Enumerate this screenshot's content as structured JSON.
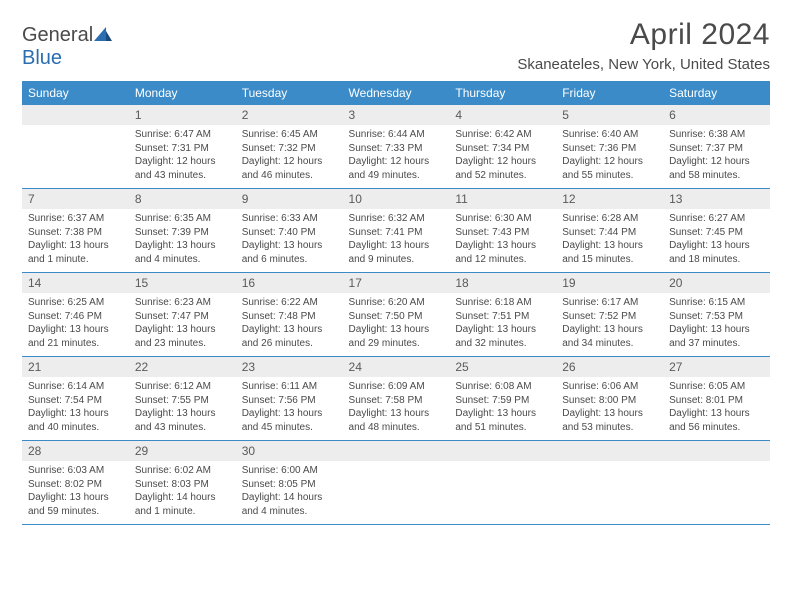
{
  "brand": {
    "part1": "General",
    "part2": "Blue"
  },
  "title": "April 2024",
  "location": "Skaneateles, New York, United States",
  "colors": {
    "header_bg": "#3b8bc8",
    "header_text": "#ffffff",
    "daynum_bg": "#ededed",
    "cell_border": "#3b8bc8",
    "text": "#4a4a4a",
    "brand_blue": "#2a6db0"
  },
  "weekdays": [
    "Sunday",
    "Monday",
    "Tuesday",
    "Wednesday",
    "Thursday",
    "Friday",
    "Saturday"
  ],
  "weeks": [
    {
      "nums": [
        "",
        "1",
        "2",
        "3",
        "4",
        "5",
        "6"
      ],
      "cells": [
        null,
        {
          "sunrise": "Sunrise: 6:47 AM",
          "sunset": "Sunset: 7:31 PM",
          "daylight1": "Daylight: 12 hours",
          "daylight2": "and 43 minutes."
        },
        {
          "sunrise": "Sunrise: 6:45 AM",
          "sunset": "Sunset: 7:32 PM",
          "daylight1": "Daylight: 12 hours",
          "daylight2": "and 46 minutes."
        },
        {
          "sunrise": "Sunrise: 6:44 AM",
          "sunset": "Sunset: 7:33 PM",
          "daylight1": "Daylight: 12 hours",
          "daylight2": "and 49 minutes."
        },
        {
          "sunrise": "Sunrise: 6:42 AM",
          "sunset": "Sunset: 7:34 PM",
          "daylight1": "Daylight: 12 hours",
          "daylight2": "and 52 minutes."
        },
        {
          "sunrise": "Sunrise: 6:40 AM",
          "sunset": "Sunset: 7:36 PM",
          "daylight1": "Daylight: 12 hours",
          "daylight2": "and 55 minutes."
        },
        {
          "sunrise": "Sunrise: 6:38 AM",
          "sunset": "Sunset: 7:37 PM",
          "daylight1": "Daylight: 12 hours",
          "daylight2": "and 58 minutes."
        }
      ]
    },
    {
      "nums": [
        "7",
        "8",
        "9",
        "10",
        "11",
        "12",
        "13"
      ],
      "cells": [
        {
          "sunrise": "Sunrise: 6:37 AM",
          "sunset": "Sunset: 7:38 PM",
          "daylight1": "Daylight: 13 hours",
          "daylight2": "and 1 minute."
        },
        {
          "sunrise": "Sunrise: 6:35 AM",
          "sunset": "Sunset: 7:39 PM",
          "daylight1": "Daylight: 13 hours",
          "daylight2": "and 4 minutes."
        },
        {
          "sunrise": "Sunrise: 6:33 AM",
          "sunset": "Sunset: 7:40 PM",
          "daylight1": "Daylight: 13 hours",
          "daylight2": "and 6 minutes."
        },
        {
          "sunrise": "Sunrise: 6:32 AM",
          "sunset": "Sunset: 7:41 PM",
          "daylight1": "Daylight: 13 hours",
          "daylight2": "and 9 minutes."
        },
        {
          "sunrise": "Sunrise: 6:30 AM",
          "sunset": "Sunset: 7:43 PM",
          "daylight1": "Daylight: 13 hours",
          "daylight2": "and 12 minutes."
        },
        {
          "sunrise": "Sunrise: 6:28 AM",
          "sunset": "Sunset: 7:44 PM",
          "daylight1": "Daylight: 13 hours",
          "daylight2": "and 15 minutes."
        },
        {
          "sunrise": "Sunrise: 6:27 AM",
          "sunset": "Sunset: 7:45 PM",
          "daylight1": "Daylight: 13 hours",
          "daylight2": "and 18 minutes."
        }
      ]
    },
    {
      "nums": [
        "14",
        "15",
        "16",
        "17",
        "18",
        "19",
        "20"
      ],
      "cells": [
        {
          "sunrise": "Sunrise: 6:25 AM",
          "sunset": "Sunset: 7:46 PM",
          "daylight1": "Daylight: 13 hours",
          "daylight2": "and 21 minutes."
        },
        {
          "sunrise": "Sunrise: 6:23 AM",
          "sunset": "Sunset: 7:47 PM",
          "daylight1": "Daylight: 13 hours",
          "daylight2": "and 23 minutes."
        },
        {
          "sunrise": "Sunrise: 6:22 AM",
          "sunset": "Sunset: 7:48 PM",
          "daylight1": "Daylight: 13 hours",
          "daylight2": "and 26 minutes."
        },
        {
          "sunrise": "Sunrise: 6:20 AM",
          "sunset": "Sunset: 7:50 PM",
          "daylight1": "Daylight: 13 hours",
          "daylight2": "and 29 minutes."
        },
        {
          "sunrise": "Sunrise: 6:18 AM",
          "sunset": "Sunset: 7:51 PM",
          "daylight1": "Daylight: 13 hours",
          "daylight2": "and 32 minutes."
        },
        {
          "sunrise": "Sunrise: 6:17 AM",
          "sunset": "Sunset: 7:52 PM",
          "daylight1": "Daylight: 13 hours",
          "daylight2": "and 34 minutes."
        },
        {
          "sunrise": "Sunrise: 6:15 AM",
          "sunset": "Sunset: 7:53 PM",
          "daylight1": "Daylight: 13 hours",
          "daylight2": "and 37 minutes."
        }
      ]
    },
    {
      "nums": [
        "21",
        "22",
        "23",
        "24",
        "25",
        "26",
        "27"
      ],
      "cells": [
        {
          "sunrise": "Sunrise: 6:14 AM",
          "sunset": "Sunset: 7:54 PM",
          "daylight1": "Daylight: 13 hours",
          "daylight2": "and 40 minutes."
        },
        {
          "sunrise": "Sunrise: 6:12 AM",
          "sunset": "Sunset: 7:55 PM",
          "daylight1": "Daylight: 13 hours",
          "daylight2": "and 43 minutes."
        },
        {
          "sunrise": "Sunrise: 6:11 AM",
          "sunset": "Sunset: 7:56 PM",
          "daylight1": "Daylight: 13 hours",
          "daylight2": "and 45 minutes."
        },
        {
          "sunrise": "Sunrise: 6:09 AM",
          "sunset": "Sunset: 7:58 PM",
          "daylight1": "Daylight: 13 hours",
          "daylight2": "and 48 minutes."
        },
        {
          "sunrise": "Sunrise: 6:08 AM",
          "sunset": "Sunset: 7:59 PM",
          "daylight1": "Daylight: 13 hours",
          "daylight2": "and 51 minutes."
        },
        {
          "sunrise": "Sunrise: 6:06 AM",
          "sunset": "Sunset: 8:00 PM",
          "daylight1": "Daylight: 13 hours",
          "daylight2": "and 53 minutes."
        },
        {
          "sunrise": "Sunrise: 6:05 AM",
          "sunset": "Sunset: 8:01 PM",
          "daylight1": "Daylight: 13 hours",
          "daylight2": "and 56 minutes."
        }
      ]
    },
    {
      "nums": [
        "28",
        "29",
        "30",
        "",
        "",
        "",
        ""
      ],
      "cells": [
        {
          "sunrise": "Sunrise: 6:03 AM",
          "sunset": "Sunset: 8:02 PM",
          "daylight1": "Daylight: 13 hours",
          "daylight2": "and 59 minutes."
        },
        {
          "sunrise": "Sunrise: 6:02 AM",
          "sunset": "Sunset: 8:03 PM",
          "daylight1": "Daylight: 14 hours",
          "daylight2": "and 1 minute."
        },
        {
          "sunrise": "Sunrise: 6:00 AM",
          "sunset": "Sunset: 8:05 PM",
          "daylight1": "Daylight: 14 hours",
          "daylight2": "and 4 minutes."
        },
        null,
        null,
        null,
        null
      ]
    }
  ]
}
